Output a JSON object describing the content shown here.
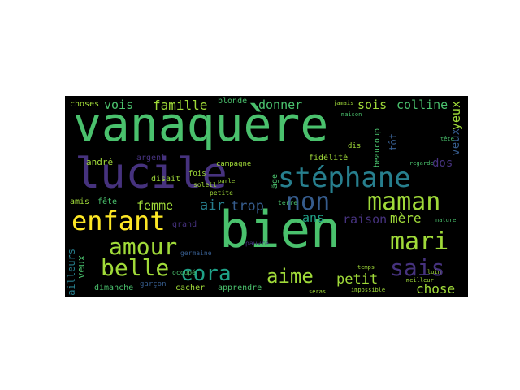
{
  "wordcloud": {
    "palette": {
      "background": "#000000",
      "purple": "#46327e",
      "blue": "#365c8d",
      "teal": "#277f8e",
      "green": "#1fa187",
      "lightgreen": "#4ac16d",
      "lime": "#a0da39",
      "yellow": "#fde725"
    },
    "words": {
      "vanaquere": "vanaquère",
      "bien": "bien",
      "lucile": "lucile",
      "stephane": "stéphane",
      "enfant": "enfant",
      "maman": "maman",
      "non": "non",
      "amour": "amour",
      "mari": "mari",
      "sais": "sais",
      "belle": "belle",
      "cora": "cora",
      "aime": "aime",
      "petit": "petit",
      "chose": "chose",
      "mere": "mère",
      "raison": "raison",
      "femme": "femme",
      "air": "air",
      "trop": "trop",
      "ans": "ans",
      "vois": "vois",
      "famille": "famille",
      "donner": "donner",
      "sois": "sois",
      "colline": "colline",
      "choses": "choses",
      "blonde": "blonde",
      "andre": "andré",
      "argent": "argent",
      "campagne": "campagne",
      "fidelite": "fidélité",
      "beaucoup": "beaucoup",
      "veux_left": "veux",
      "veux_right": "veux",
      "yeux": "yeux",
      "tot": "tôt",
      "dos": "dos",
      "age": "âge",
      "amis": "amis",
      "fete": "fête",
      "ailleurs": "ailleurs",
      "dimanche": "dimanche",
      "garcon": "garçon",
      "cacher": "cacher",
      "apprendre": "apprendre",
      "impossible": "impossible",
      "dis": "dis",
      "disait": "disait",
      "fois": "fois",
      "soleil": "soleil",
      "petite": "petite",
      "grand": "grand",
      "germaine": "germaine",
      "pauvre": "pauvre",
      "terre": "terre",
      "jamais": "jamais",
      "meilleur": "meilleur",
      "loin": "loin",
      "temps": "temps",
      "seras": "seras",
      "maison": "maison",
      "parle": "parle",
      "tete": "tête",
      "nature": "nature",
      "regarde": "regarde",
      "occupe": "occupé"
    }
  }
}
